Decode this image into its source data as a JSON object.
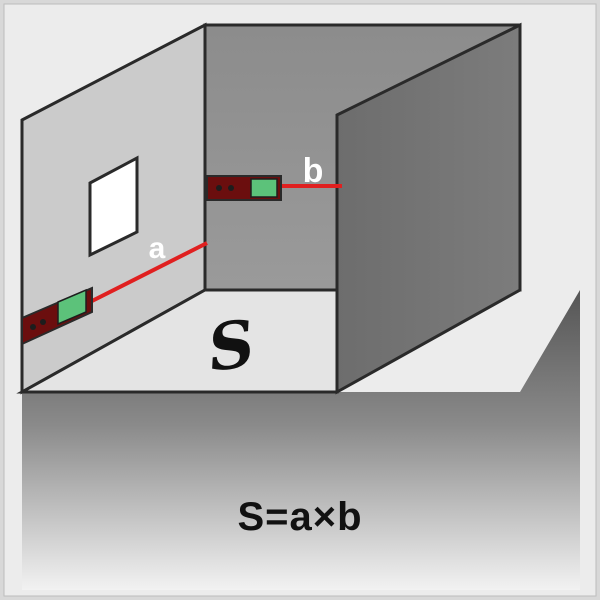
{
  "diagram": {
    "labels": {
      "a": "a",
      "b": "b",
      "area_symbol": "S"
    },
    "formula": {
      "lhs": "S",
      "equals": "=",
      "term1": "a",
      "times": "×",
      "term2": "b"
    },
    "colors": {
      "laser": "#e02020",
      "device_body": "#7a1010",
      "device_screen": "#5cc27a",
      "wall_left": "#c9c9c9",
      "wall_back": "#8f8f8f",
      "wall_right": "#6e6e6e",
      "floor": "#e3e3e3"
    }
  }
}
